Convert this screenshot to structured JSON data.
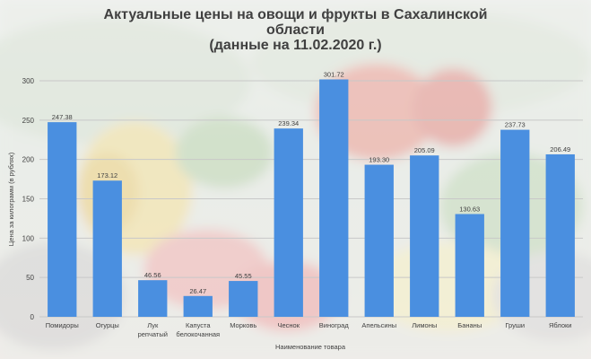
{
  "chart_data": {
    "type": "bar",
    "title_lines": [
      "Актуальные цены на овощи и фрукты в Сахалинской",
      "области",
      "(данные на 11.02.2020 г.)"
    ],
    "xlabel": "Наименование товара",
    "ylabel": "Цена за килограмм (в рублях)",
    "categories": [
      [
        "Помидоры"
      ],
      [
        "Огурцы"
      ],
      [
        "Лук",
        "репчатый"
      ],
      [
        "Капуста",
        "белокочанная"
      ],
      [
        "Морковь"
      ],
      [
        "Чеснок"
      ],
      [
        "Виноград"
      ],
      [
        "Апельсины"
      ],
      [
        "Лимоны"
      ],
      [
        "Бананы"
      ],
      [
        "Груши"
      ],
      [
        "Яблоки"
      ]
    ],
    "values": [
      247.38,
      173.12,
      46.56,
      26.47,
      45.55,
      239.34,
      301.72,
      193.3,
      205.09,
      130.63,
      237.73,
      206.49
    ],
    "value_labels": [
      "247.38",
      "173.12",
      "46.56",
      "26.47",
      "45.55",
      "239.34",
      "301.72",
      "193.30",
      "205.09",
      "130.63",
      "237.73",
      "206.49"
    ],
    "yticks": [
      "0",
      "50",
      "100",
      "150",
      "200",
      "250",
      "300"
    ],
    "ylim": [
      0,
      300
    ],
    "grid": true,
    "legend": "none",
    "bar_color": "#4a8fe0",
    "text_color": "#404040",
    "grid_color": "#c8c8c8"
  }
}
